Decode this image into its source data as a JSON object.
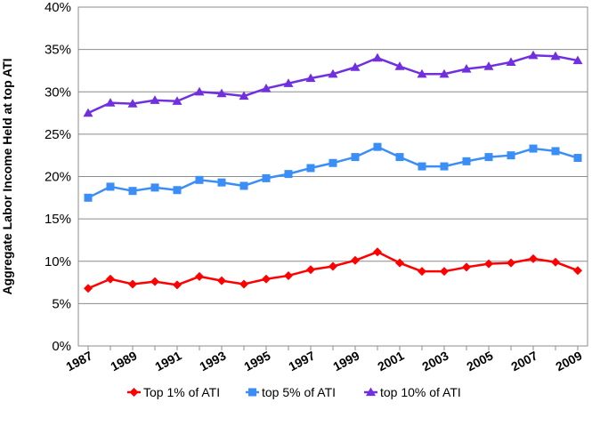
{
  "chart_data": {
    "type": "line",
    "title": "",
    "xlabel": "",
    "ylabel": "Aggregate Labor Income Held at top ATI",
    "x": [
      1987,
      1988,
      1989,
      1990,
      1991,
      1992,
      1993,
      1994,
      1995,
      1996,
      1997,
      1998,
      1999,
      2000,
      2001,
      2002,
      2003,
      2004,
      2005,
      2006,
      2007,
      2008,
      2009
    ],
    "x_tick_labels": [
      "1987",
      "1989",
      "1991",
      "1993",
      "1995",
      "1997",
      "1999",
      "2001",
      "2003",
      "2005",
      "2007",
      "2009"
    ],
    "y_tick_labels": [
      "0%",
      "5%",
      "10%",
      "15%",
      "20%",
      "25%",
      "30%",
      "35%",
      "40%"
    ],
    "ylim": [
      0,
      40
    ],
    "grid": "horizontal",
    "legend_position": "bottom",
    "series": [
      {
        "name": "Top 1% of ATI",
        "color": "#ff0000",
        "marker": "diamond",
        "values": [
          6.8,
          7.9,
          7.3,
          7.6,
          7.2,
          8.2,
          7.7,
          7.3,
          7.9,
          8.3,
          9.0,
          9.4,
          10.1,
          11.1,
          9.8,
          8.8,
          8.8,
          9.3,
          9.7,
          9.8,
          10.3,
          9.9,
          8.9
        ]
      },
      {
        "name": "top 5% of ATI",
        "color": "#3a8ef6",
        "marker": "square",
        "values": [
          17.5,
          18.8,
          18.3,
          18.7,
          18.4,
          19.6,
          19.3,
          18.9,
          19.8,
          20.3,
          21.0,
          21.6,
          22.3,
          23.5,
          22.3,
          21.2,
          21.2,
          21.8,
          22.3,
          22.5,
          23.3,
          23.0,
          22.2
        ]
      },
      {
        "name": "top 10% of ATI",
        "color": "#7030e0",
        "marker": "triangle",
        "values": [
          27.5,
          28.7,
          28.6,
          29.0,
          28.9,
          30.0,
          29.8,
          29.5,
          30.4,
          31.0,
          31.6,
          32.1,
          32.9,
          34.0,
          33.0,
          32.1,
          32.1,
          32.7,
          33.0,
          33.5,
          34.3,
          34.2,
          33.7
        ]
      }
    ]
  }
}
